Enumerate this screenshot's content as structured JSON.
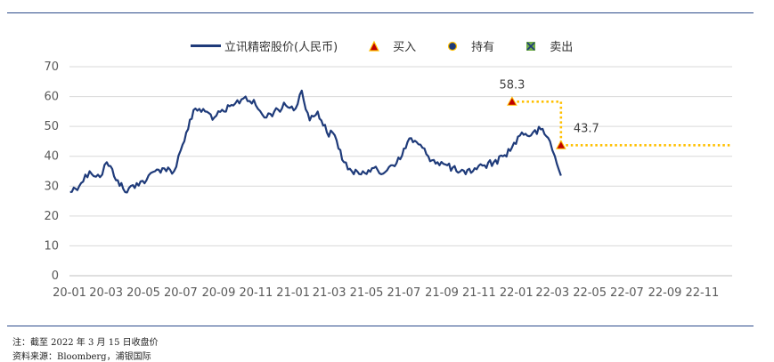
{
  "legend": {
    "price_label": "立讯精密股价(人民币)",
    "buy_label": "买入",
    "hold_label": "持有",
    "sell_label": "卖出"
  },
  "footnotes": {
    "note": "注：截至 2022 年 3 月 15 日收盘价",
    "source": "资料来源：Bloomberg，浦银国际"
  },
  "colors": {
    "line": "#1f3b7a",
    "buy_marker": "#c00000",
    "buy_marker_border": "#ffc000",
    "target_line": "#ffc000",
    "grid": "#d9d9d9",
    "rule": "#2b4a8a"
  },
  "chart_data": {
    "type": "line",
    "xlabel": "",
    "ylabel": "",
    "ylim": [
      0,
      70
    ],
    "yticks": [
      0,
      10,
      20,
      30,
      40,
      50,
      60,
      70
    ],
    "xticks": [
      "20-01",
      "20-03",
      "20-05",
      "20-07",
      "20-09",
      "20-11",
      "21-01",
      "21-03",
      "21-05",
      "21-07",
      "21-09",
      "21-11",
      "22-01",
      "22-03",
      "22-05",
      "22-07",
      "22-09",
      "22-11"
    ],
    "grid": true,
    "legend_position": "top",
    "series": [
      {
        "name": "立讯精密股价(人民币)",
        "x": [
          "2020-01-02",
          "2020-01-20",
          "2020-02-03",
          "2020-02-20",
          "2020-03-02",
          "2020-03-20",
          "2020-04-01",
          "2020-04-20",
          "2020-05-06",
          "2020-05-20",
          "2020-06-01",
          "2020-06-20",
          "2020-07-01",
          "2020-07-10",
          "2020-07-25",
          "2020-08-10",
          "2020-08-25",
          "2020-09-10",
          "2020-09-25",
          "2020-10-15",
          "2020-11-01",
          "2020-11-15",
          "2020-12-01",
          "2020-12-20",
          "2021-01-05",
          "2021-01-15",
          "2021-01-28",
          "2021-02-10",
          "2021-02-25",
          "2021-03-10",
          "2021-03-25",
          "2021-04-10",
          "2021-04-25",
          "2021-05-10",
          "2021-05-25",
          "2021-06-10",
          "2021-06-25",
          "2021-07-10",
          "2021-07-25",
          "2021-08-10",
          "2021-08-25",
          "2021-09-10",
          "2021-09-25",
          "2021-10-10",
          "2021-10-25",
          "2021-11-10",
          "2021-11-25",
          "2021-12-10",
          "2021-12-25",
          "2022-01-10",
          "2022-01-25",
          "2022-02-10",
          "2022-02-25",
          "2022-03-05",
          "2022-03-15"
        ],
        "y": [
          28,
          31,
          35,
          33,
          38,
          32,
          28,
          31,
          32,
          35,
          36,
          35,
          42,
          48,
          56,
          55,
          53,
          55,
          57,
          60,
          57,
          53,
          55,
          57,
          56,
          62,
          52,
          55,
          48,
          47,
          38,
          34,
          35,
          36,
          34,
          37,
          39,
          46,
          44,
          40,
          38,
          37,
          35,
          34,
          36,
          37,
          38,
          40,
          43,
          48,
          47,
          49,
          45,
          40,
          33.5
        ]
      }
    ],
    "annotations": [
      {
        "type": "buy",
        "date": "2021-12-25",
        "price": 58.3,
        "label": "58.3"
      },
      {
        "type": "buy",
        "date": "2022-03-15",
        "price": 43.7,
        "label": "43.7"
      }
    ]
  }
}
